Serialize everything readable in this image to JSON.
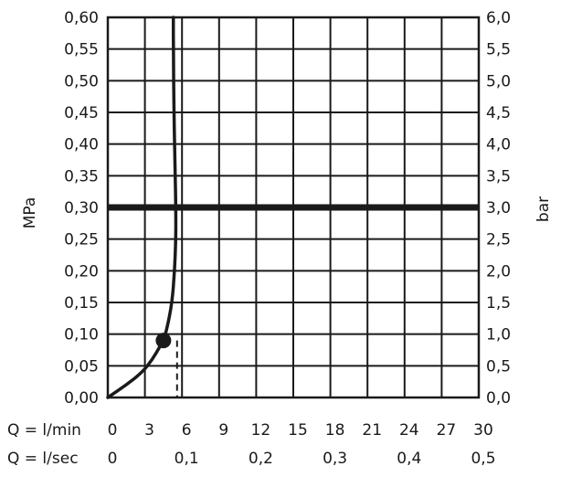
{
  "chart_data": {
    "type": "line",
    "title": "",
    "ylabel_left": "MPa",
    "ylabel_right": "bar",
    "x_row1_label": "Q = l/min",
    "x_row2_label": "Q = l/sec",
    "xlim": [
      0,
      30
    ],
    "ylim": [
      0,
      0.6
    ],
    "grid": true,
    "x_ticks_lmin": [
      "0",
      "3",
      "6",
      "9",
      "12",
      "15",
      "18",
      "21",
      "24",
      "27",
      "30"
    ],
    "x_ticks_lsec": [
      "0",
      "0,1",
      "0,2",
      "0,3",
      "0,4",
      "0,5"
    ],
    "y_ticks_mpa": [
      "0,00",
      "0,05",
      "0,10",
      "0,15",
      "0,20",
      "0,25",
      "0,30",
      "0,35",
      "0,40",
      "0,45",
      "0,50",
      "0,55",
      "0,60"
    ],
    "y_ticks_bar": [
      "0,0",
      "0,5",
      "1,0",
      "1,5",
      "2,0",
      "2,5",
      "3,0",
      "3,5",
      "4,0",
      "4,5",
      "5,0",
      "5,5",
      "6,0"
    ],
    "reference_pressure_mpa": 0.3,
    "flow_limit_lmin": 5.6,
    "marker_point": {
      "x": 4.5,
      "y": 0.09
    },
    "series": [
      {
        "x": [
          0,
          1.5,
          2.8,
          3.6,
          4.2,
          4.5,
          4.8,
          5.2,
          5.4,
          5.5,
          5.5,
          5.45,
          5.35,
          5.3,
          5.3
        ],
        "y": [
          0,
          0.02,
          0.04,
          0.06,
          0.08,
          0.09,
          0.11,
          0.15,
          0.2,
          0.25,
          0.3,
          0.35,
          0.45,
          0.55,
          0.6
        ]
      }
    ]
  }
}
